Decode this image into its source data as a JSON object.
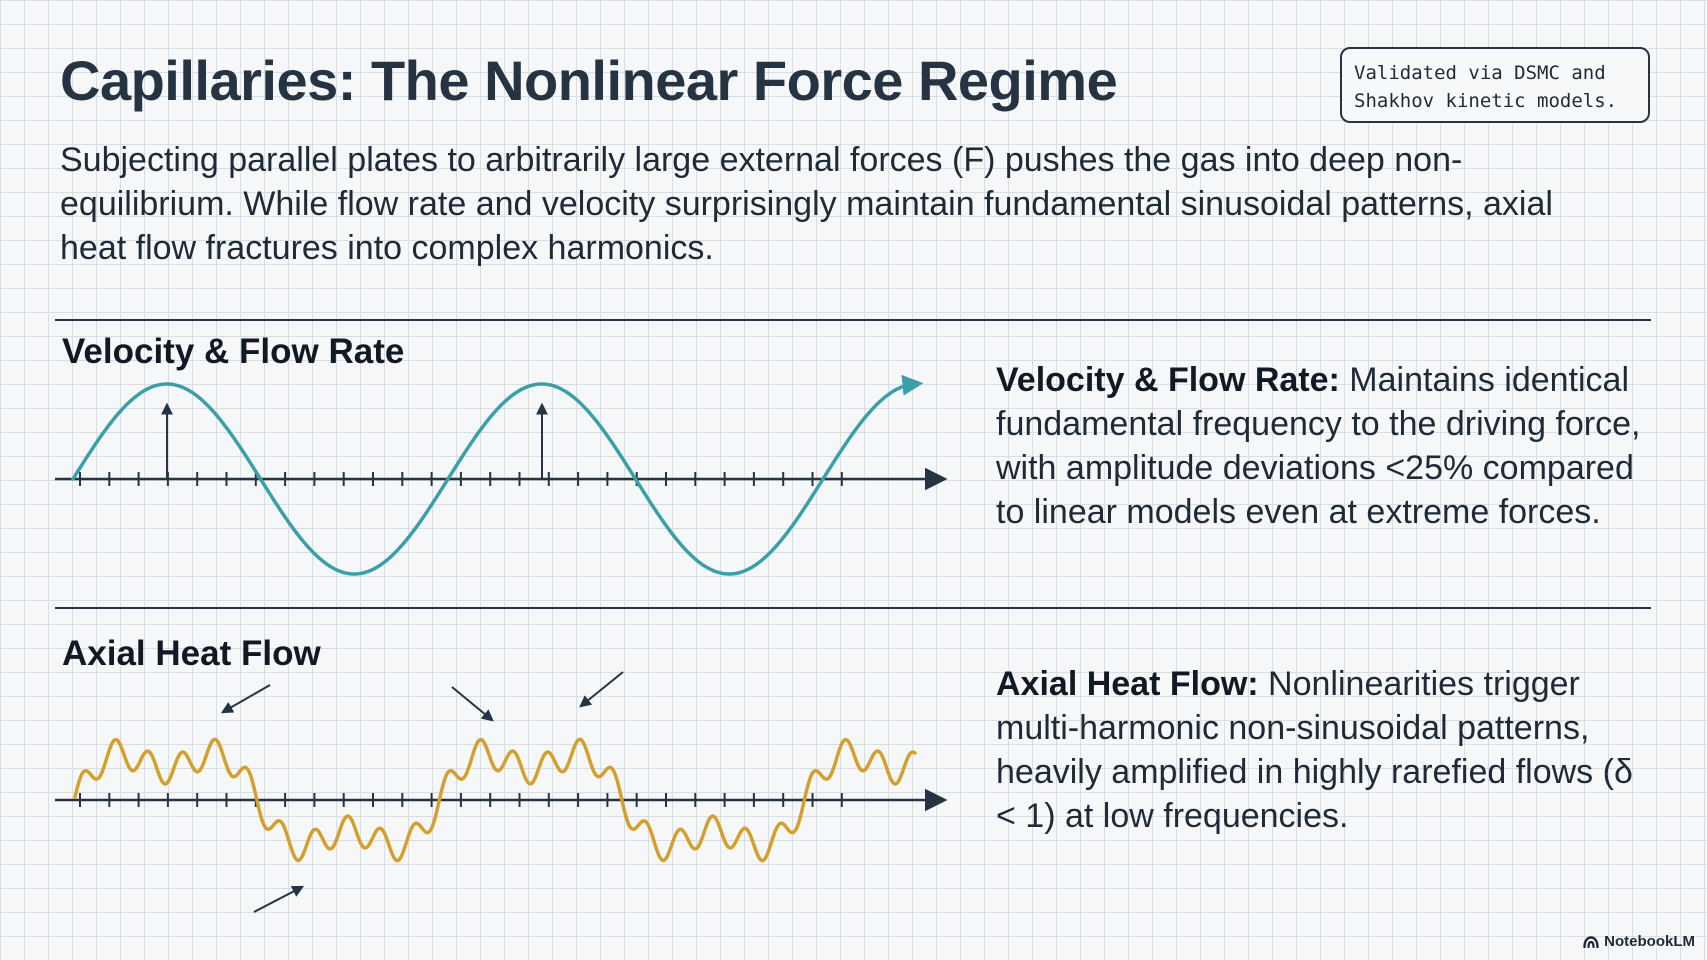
{
  "title": "Capillaries: The Nonlinear Force Regime",
  "validation_note": {
    "line1": "Validated via DSMC and",
    "line2": "Shakhov kinetic models."
  },
  "subtitle": "Subjecting parallel plates to arbitrarily large external forces (F) pushes the gas into deep non-equilibrium. While flow rate and velocity surprisingly maintain fundamental sinusoidal patterns, axial heat flow fractures into complex harmonics.",
  "sections": [
    {
      "label": "Velocity & Flow Rate",
      "desc_bold": "Velocity & Flow Rate:",
      "desc_text": " Maintains identical fundamental frequency to the driving force, with amplitude deviations <25% compared to linear models even at extreme forces.",
      "curve_color": "#3a9fa8",
      "waveform": "sinusoidal"
    },
    {
      "label": "Axial Heat Flow",
      "desc_bold": "Axial Heat Flow:",
      "desc_text": " Nonlinearities trigger multi-harmonic non-sinusoidal patterns, heavily amplified in highly rarefied flows (δ < 1) at low frequencies.",
      "curve_color": "#d3a02f",
      "waveform": "multi-harmonic"
    }
  ],
  "brand": {
    "name": "NotebookLM",
    "icon": "notebooklm-logo-icon"
  },
  "colors": {
    "axis": "#263342",
    "text": "#1f2a37"
  }
}
